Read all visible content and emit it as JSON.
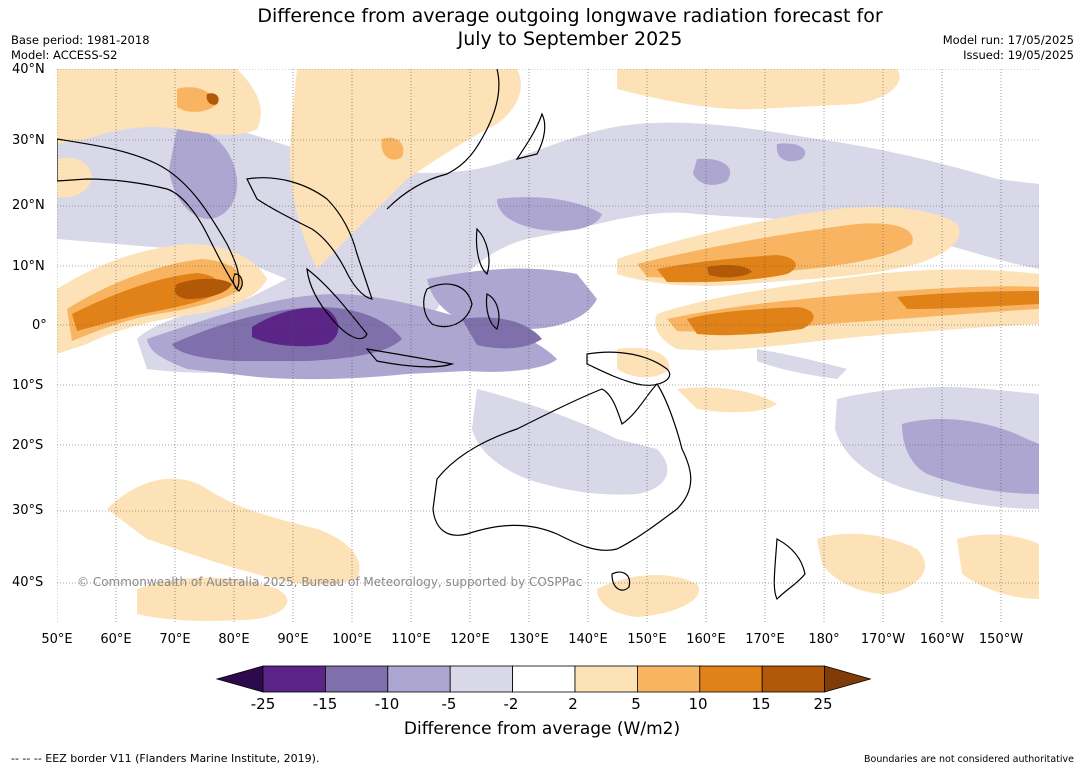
{
  "title_line1": "Difference from average outgoing longwave radiation forecast for",
  "title_line2": "July to September 2025",
  "meta_left": [
    "Base period: 1981-2018",
    "Model: ACCESS-S2"
  ],
  "meta_right": [
    "Model run: 17/05/2025",
    "Issued: 19/05/2025"
  ],
  "lat_labels": [
    "40°N",
    "30°N",
    "20°N",
    "10°N",
    "0°",
    "10°S",
    "20°S",
    "30°S",
    "40°S"
  ],
  "lon_labels": [
    "50°E",
    "60°E",
    "70°E",
    "80°E",
    "90°E",
    "100°E",
    "110°E",
    "120°E",
    "130°E",
    "140°E",
    "150°E",
    "160°E",
    "170°E",
    "180°",
    "170°W",
    "160°W",
    "150°W"
  ],
  "copyright": "© Commonwealth of Australia 2025, Bureau of Meteorology, supported by COSPPac",
  "colorbar": {
    "ticks": [
      "-25",
      "-15",
      "-10",
      "-5",
      "-2",
      "2",
      "5",
      "10",
      "15",
      "25"
    ],
    "colors": [
      "#2d0a4b",
      "#5a2587",
      "#7f6fab",
      "#aca6d0",
      "#d8d8e8",
      "#ffffff",
      "#fde2b7",
      "#f8b460",
      "#e08218",
      "#b15908",
      "#7f3b08"
    ],
    "title": "Difference from average (W/m2)"
  },
  "eez_note": "--  --  -- EEZ border V11 (Flanders Marine Institute, 2019).",
  "boundary_note": "Boundaries are not considered authoritative",
  "map_colors": {
    "ocean": "#ffffff",
    "coast": "#000000",
    "border": "#8a8a8a",
    "grid": "#555555"
  }
}
